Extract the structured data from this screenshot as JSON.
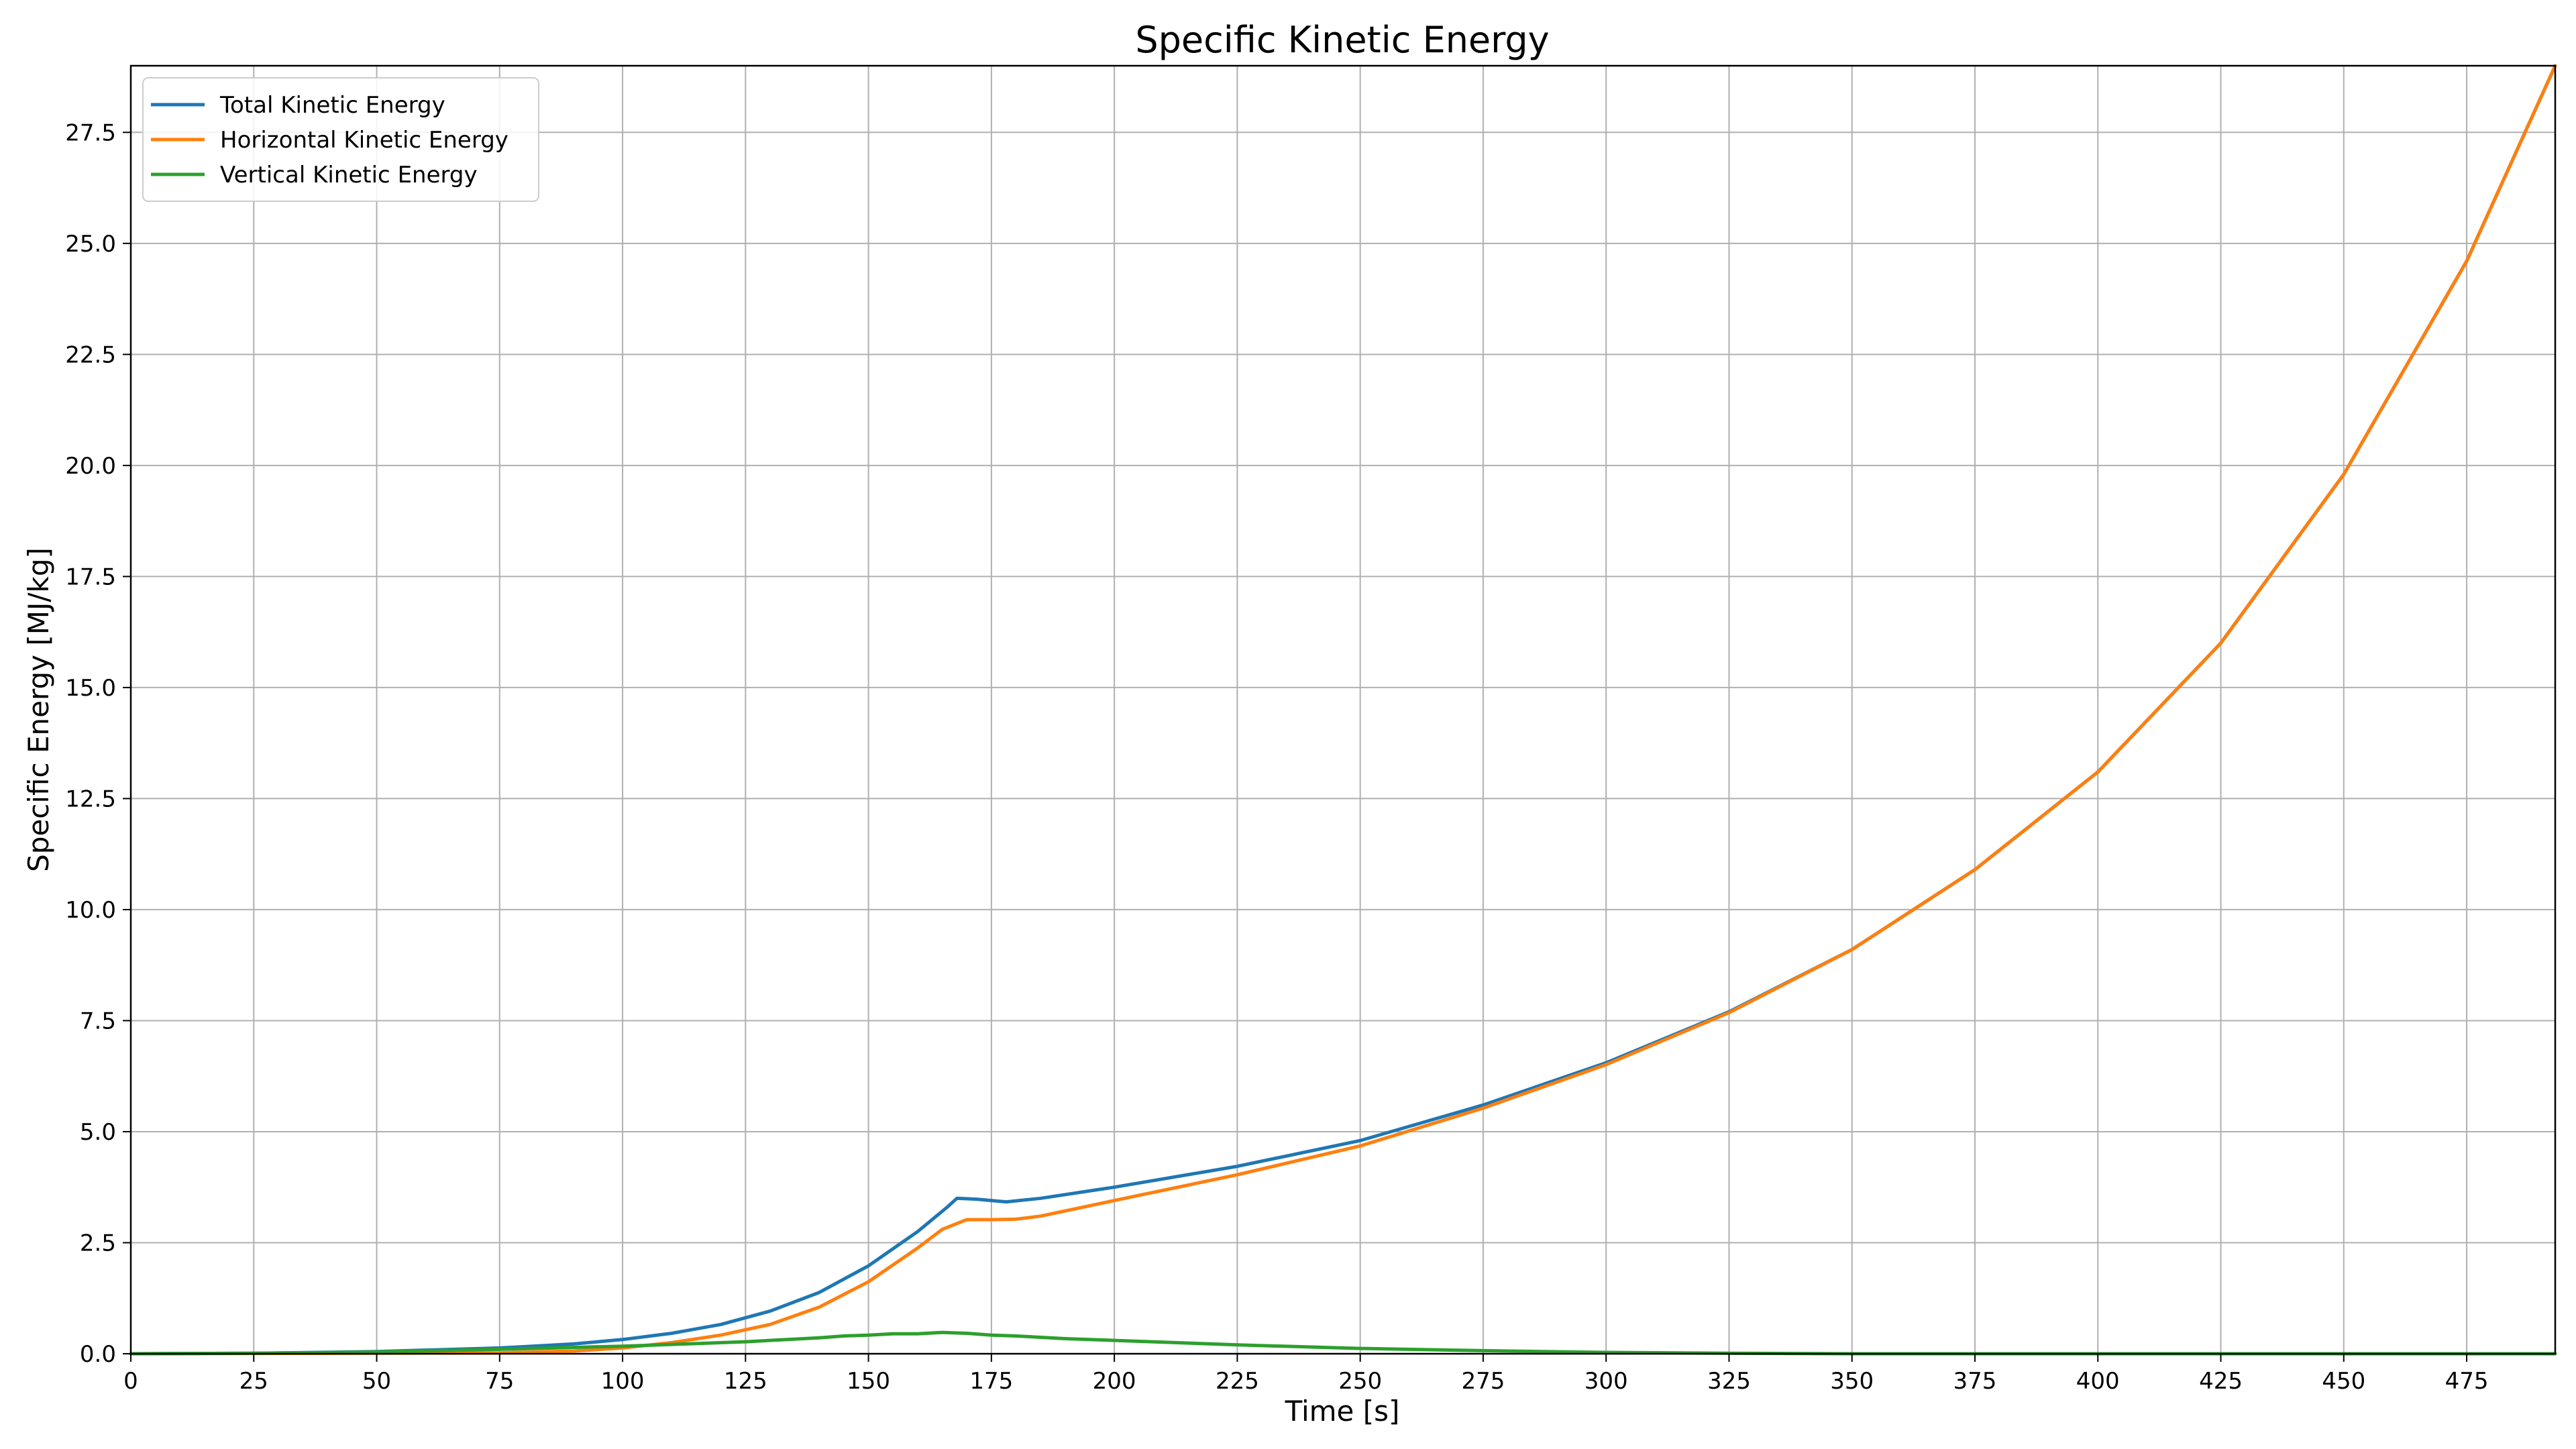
{
  "chart_data": {
    "type": "line",
    "title": "Specific Kinetic Energy",
    "xlabel": "Time [s]",
    "ylabel": "Specific Energy [MJ/kg]",
    "xlim": [
      0,
      493
    ],
    "ylim": [
      0,
      29
    ],
    "x_ticks": [
      0,
      25,
      50,
      75,
      100,
      125,
      150,
      175,
      200,
      225,
      250,
      275,
      300,
      325,
      350,
      375,
      400,
      425,
      450,
      475
    ],
    "y_ticks": [
      0.0,
      2.5,
      5.0,
      7.5,
      10.0,
      12.5,
      15.0,
      17.5,
      20.0,
      22.5,
      25.0,
      27.5
    ],
    "x_tick_labels": [
      "0",
      "25",
      "50",
      "75",
      "100",
      "125",
      "150",
      "175",
      "200",
      "225",
      "250",
      "275",
      "300",
      "325",
      "350",
      "375",
      "400",
      "425",
      "450",
      "475"
    ],
    "y_tick_labels": [
      "0.0",
      "2.5",
      "5.0",
      "7.5",
      "10.0",
      "12.5",
      "15.0",
      "17.5",
      "20.0",
      "22.5",
      "25.0",
      "27.5"
    ],
    "grid": true,
    "legend_position": "top-left",
    "series": [
      {
        "name": "Total Kinetic Energy",
        "color": "#1f77b4",
        "x": [
          0,
          25,
          50,
          75,
          90,
          100,
          110,
          120,
          130,
          140,
          150,
          160,
          166,
          168,
          172,
          178,
          185,
          200,
          225,
          250,
          275,
          300,
          325,
          350,
          375,
          400,
          425,
          450,
          475,
          493
        ],
        "y": [
          0,
          0.01,
          0.05,
          0.13,
          0.22,
          0.32,
          0.46,
          0.66,
          0.96,
          1.38,
          1.98,
          2.75,
          3.3,
          3.5,
          3.48,
          3.42,
          3.5,
          3.75,
          4.22,
          4.8,
          5.6,
          6.55,
          7.7,
          9.1,
          10.9,
          13.1,
          16.0,
          19.8,
          24.6,
          29.0
        ]
      },
      {
        "name": "Horizontal Kinetic Energy",
        "color": "#ff7f0e",
        "x": [
          0,
          50,
          75,
          90,
          100,
          110,
          120,
          130,
          140,
          150,
          160,
          165,
          170,
          175,
          180,
          185,
          200,
          225,
          250,
          275,
          300,
          325,
          350,
          375,
          400,
          425,
          450,
          475,
          493
        ],
        "y": [
          0,
          0.01,
          0.02,
          0.06,
          0.13,
          0.25,
          0.42,
          0.66,
          1.05,
          1.62,
          2.38,
          2.8,
          3.02,
          3.02,
          3.03,
          3.1,
          3.45,
          4.03,
          4.68,
          5.53,
          6.51,
          7.68,
          9.1,
          10.9,
          13.1,
          16.0,
          19.8,
          24.6,
          29.0
        ]
      },
      {
        "name": "Vertical Kinetic Energy",
        "color": "#2ca02c",
        "x": [
          0,
          25,
          50,
          75,
          100,
          110,
          125,
          140,
          145,
          150,
          155,
          160,
          165,
          170,
          175,
          180,
          190,
          200,
          225,
          250,
          275,
          300,
          325,
          350,
          375,
          400,
          493
        ],
        "y": [
          0,
          0.01,
          0.04,
          0.1,
          0.17,
          0.21,
          0.27,
          0.36,
          0.4,
          0.42,
          0.45,
          0.45,
          0.48,
          0.46,
          0.42,
          0.4,
          0.34,
          0.3,
          0.2,
          0.12,
          0.07,
          0.03,
          0.01,
          0.0,
          0.0,
          0.0,
          0.0
        ]
      }
    ]
  }
}
